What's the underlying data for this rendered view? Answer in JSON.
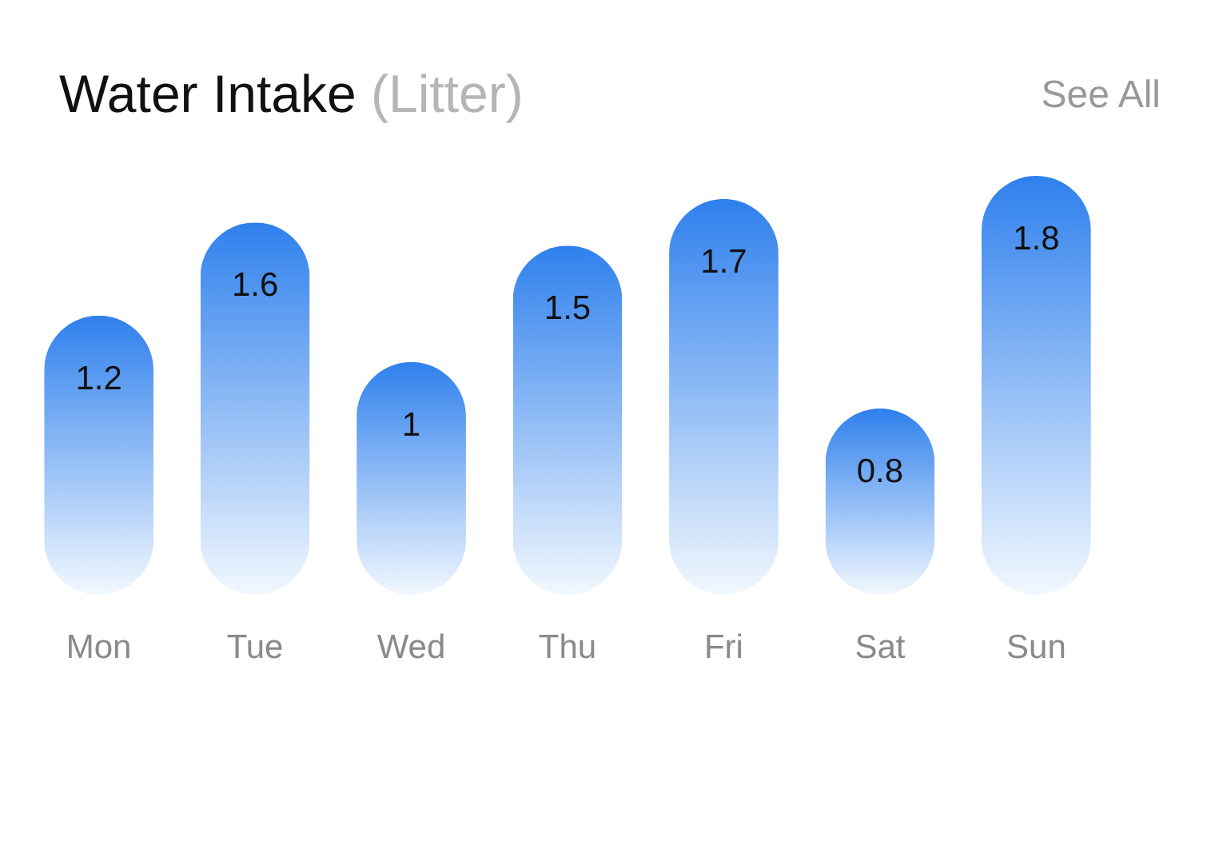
{
  "chart_data": {
    "type": "bar",
    "title": "Water Intake",
    "subtitle": "(Litter)",
    "annotations": [
      "See All"
    ],
    "categories": [
      "Mon",
      "Tue",
      "Wed",
      "Thu",
      "Fri",
      "Sat",
      "Sun"
    ],
    "values": [
      1.2,
      1.6,
      1,
      1.5,
      1.7,
      0.8,
      1.8
    ],
    "color": "#2f80ed",
    "data_labels": true
  }
}
